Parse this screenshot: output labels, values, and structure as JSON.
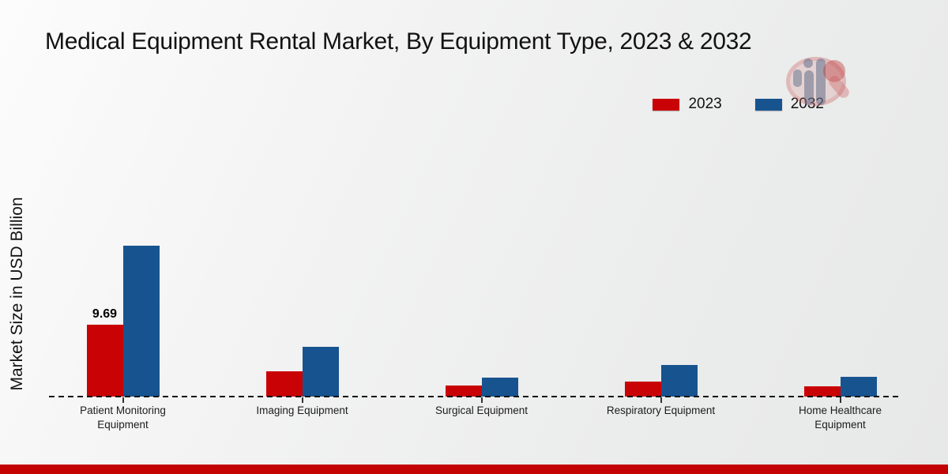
{
  "title": "Medical Equipment Rental Market, By Equipment Type, 2023 & 2032",
  "y_axis_label": "Market Size in USD Billion",
  "legend": [
    {
      "label": "2023",
      "color": "#c90305"
    },
    {
      "label": "2032",
      "color": "#17548f"
    }
  ],
  "watermark_icon": "market-research-future-logo",
  "footer_accent_color": "#c40404",
  "chart_data": {
    "type": "bar",
    "categories": [
      "Patient Monitoring Equipment",
      "Imaging Equipment",
      "Surgical Equipment",
      "Respiratory Equipment",
      "Home Healthcare Equipment"
    ],
    "series": [
      {
        "name": "2023",
        "color": "#c90305",
        "values": [
          9.69,
          3.4,
          1.5,
          2.0,
          1.4
        ]
      },
      {
        "name": "2032",
        "color": "#17548f",
        "values": [
          20.3,
          6.7,
          2.6,
          4.3,
          2.7
        ]
      }
    ],
    "data_labels": [
      {
        "series": "2023",
        "category": "Patient Monitoring Equipment",
        "text": "9.69"
      }
    ],
    "xlabel": "",
    "ylabel": "Market Size in USD Billion",
    "ylim": [
      0,
      21.5
    ],
    "grid": false,
    "axis_line_style": "dashed-baseline",
    "legend_position": "top-right"
  }
}
